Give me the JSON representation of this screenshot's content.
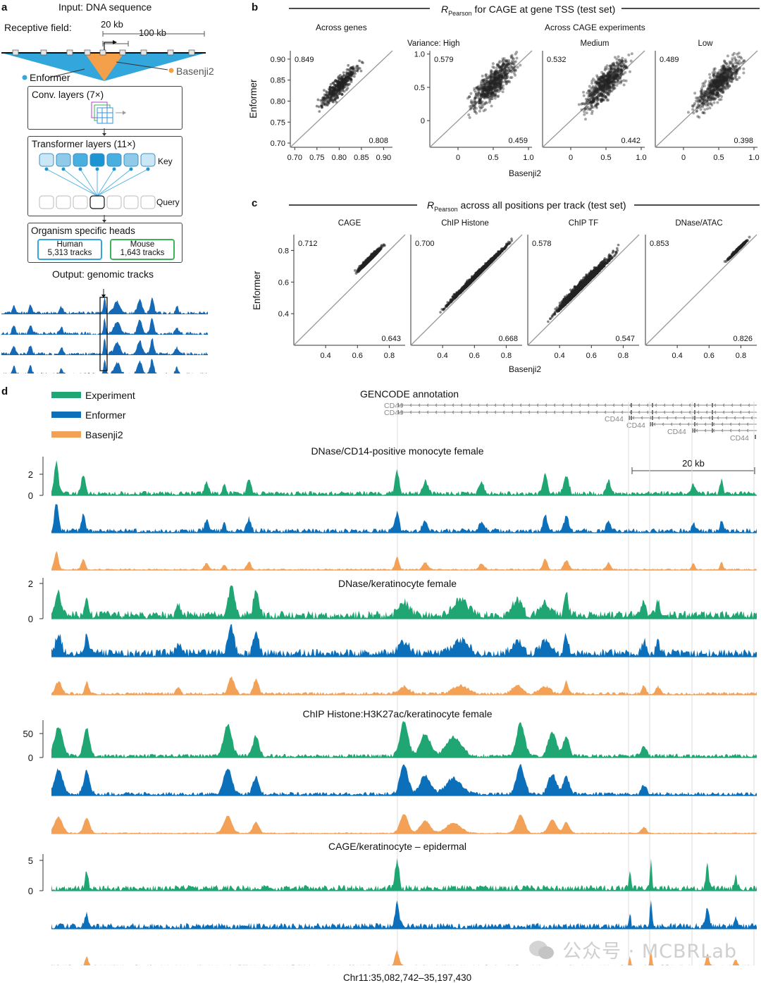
{
  "panel_a": {
    "label": "a",
    "input_label": "Input: DNA sequence",
    "receptive_field_label": "Receptive field:",
    "scale_20kb": "20 kb",
    "scale_100kb": "100 kb",
    "enformer_label": "Enformer",
    "basenji_label": "Basenji2",
    "conv_label": "Conv. layers (7×)",
    "transformer_label": "Transformer layers (11×)",
    "key_label": "Key",
    "query_label": "Query",
    "heads_label": "Organism specific heads",
    "human_name": "Human",
    "human_tracks": "5,313 tracks",
    "mouse_name": "Mouse",
    "mouse_tracks": "1,643 tracks",
    "output_label": "Output: genomic tracks",
    "enformer_color": "#33a6dc",
    "basenji_color": "#f4a04a"
  },
  "panel_b": {
    "label": "b",
    "title_main": "R",
    "title_sub": "Pearson",
    "title_rest": " for CAGE at gene TSS (test set)",
    "across_genes": "Across genes",
    "across_experiments": "Across CAGE experiments",
    "ylabel": "Enformer",
    "xlabel": "Basenji2"
  },
  "panel_c": {
    "label": "c",
    "title_main": "R",
    "title_sub": "Pearson",
    "title_rest": " across all positions per track (test set)",
    "ylabel": "Enformer",
    "xlabel": "Basenji2"
  },
  "panel_d": {
    "label": "d",
    "legend": [
      {
        "name": "Experiment",
        "color": "#1fa672"
      },
      {
        "name": "Enformer",
        "color": "#0b6fba"
      },
      {
        "name": "Basenji2",
        "color": "#f2a157"
      }
    ],
    "gencode_title": "GENCODE annotation",
    "gene_name": "CD44",
    "scale_label": "20 kb",
    "coordinate": "Chr11:35,082,742–35,197,430",
    "groups": [
      {
        "title": "DNase/CD14-positive monocyte female",
        "ticks": [
          "2",
          "0"
        ]
      },
      {
        "title": "DNase/keratinocyte female",
        "ticks": [
          "2",
          "0"
        ]
      },
      {
        "title": "ChIP Histone:H3K27ac/keratinocyte female",
        "ticks": [
          "50",
          "0"
        ]
      },
      {
        "title": "CAGE/keratinocyte – epidermal",
        "ticks": [
          "5",
          "0"
        ]
      }
    ]
  },
  "watermark": "公众号 · MCBRLab",
  "chart_data": [
    {
      "type": "scatter",
      "title": "Across genes",
      "xlabel": "Basenji2",
      "ylabel": "Enformer",
      "xlim": [
        0.69,
        0.92
      ],
      "ylim": [
        0.69,
        0.92
      ],
      "xticks": [
        "0.70",
        "0.75",
        "0.80",
        "0.85",
        "0.90"
      ],
      "yticks": [
        "0.70",
        "0.75",
        "0.80",
        "0.85",
        "0.90"
      ],
      "enformer_r": "0.849",
      "basenji_r": "0.808"
    },
    {
      "type": "scatter",
      "title": "Variance: High",
      "xlabel": "Basenji2",
      "ylabel": "Enformer",
      "xlim": [
        -0.4,
        1.05
      ],
      "ylim": [
        -0.4,
        1.05
      ],
      "xticks": [
        "0",
        "0.5",
        "1.0"
      ],
      "yticks": [
        "0",
        "0.5",
        "1.0"
      ],
      "enformer_r": "0.579",
      "basenji_r": "0.459"
    },
    {
      "type": "scatter",
      "title": "Medium",
      "xlabel": "Basenji2",
      "ylabel": "Enformer",
      "xlim": [
        -0.4,
        1.05
      ],
      "ylim": [
        -0.4,
        1.05
      ],
      "xticks": [
        "0",
        "0.5",
        "1.0"
      ],
      "enformer_r": "0.532",
      "basenji_r": "0.442"
    },
    {
      "type": "scatter",
      "title": "Low",
      "xlabel": "Basenji2",
      "ylabel": "Enformer",
      "xlim": [
        -0.4,
        1.05
      ],
      "ylim": [
        -0.4,
        1.05
      ],
      "xticks": [
        "0",
        "0.5",
        "1.0"
      ],
      "enformer_r": "0.489",
      "basenji_r": "0.398"
    },
    {
      "type": "scatter",
      "title": "CAGE",
      "xlabel": "Basenji2",
      "ylabel": "Enformer",
      "xlim": [
        0.2,
        0.9
      ],
      "ylim": [
        0.2,
        0.9
      ],
      "xticks": [
        "0.4",
        "0.6",
        "0.8"
      ],
      "yticks": [
        "0.4",
        "0.6",
        "0.8"
      ],
      "enformer_r": "0.712",
      "basenji_r": "0.643"
    },
    {
      "type": "scatter",
      "title": "ChIP Histone",
      "xlabel": "Basenji2",
      "ylabel": "Enformer",
      "xlim": [
        0.2,
        0.9
      ],
      "ylim": [
        0.2,
        0.9
      ],
      "xticks": [
        "0.4",
        "0.6",
        "0.8"
      ],
      "enformer_r": "0.700",
      "basenji_r": "0.668"
    },
    {
      "type": "scatter",
      "title": "ChIP TF",
      "xlabel": "Basenji2",
      "ylabel": "Enformer",
      "xlim": [
        0.2,
        0.9
      ],
      "ylim": [
        0.2,
        0.9
      ],
      "xticks": [
        "0.4",
        "0.6",
        "0.8"
      ],
      "enformer_r": "0.578",
      "basenji_r": "0.547"
    },
    {
      "type": "scatter",
      "title": "DNase/ATAC",
      "xlabel": "Basenji2",
      "ylabel": "Enformer",
      "xlim": [
        0.2,
        0.9
      ],
      "ylim": [
        0.2,
        0.9
      ],
      "xticks": [
        "0.4",
        "0.6",
        "0.8"
      ],
      "enformer_r": "0.853",
      "basenji_r": "0.826"
    }
  ]
}
